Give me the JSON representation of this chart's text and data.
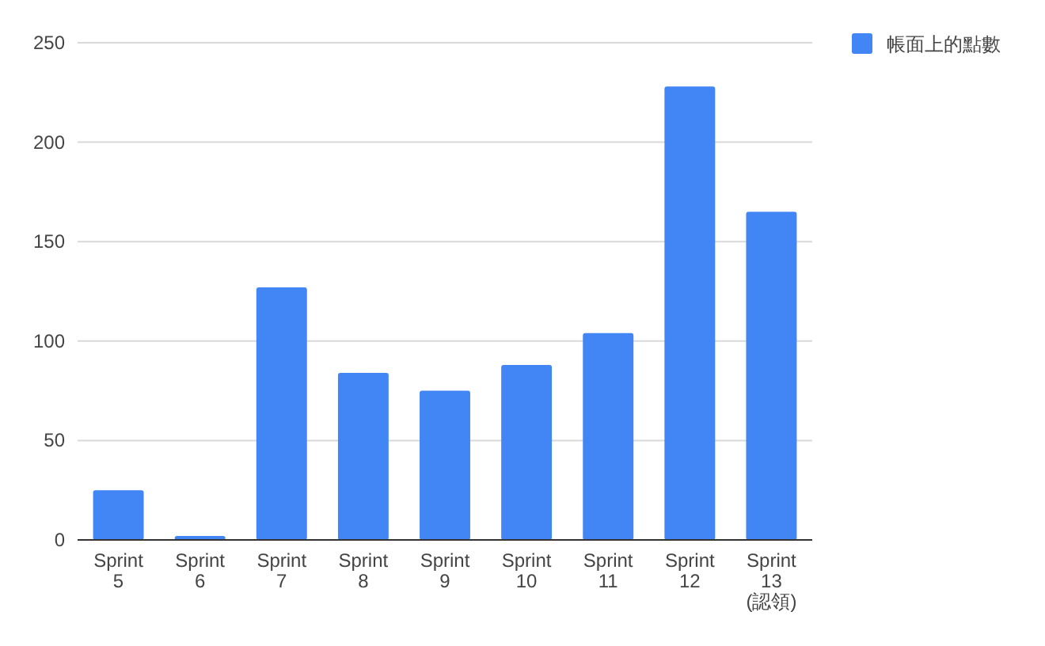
{
  "chart_data": {
    "type": "bar",
    "categories": [
      "Sprint 5",
      "Sprint 6",
      "Sprint 7",
      "Sprint 8",
      "Sprint 9",
      "Sprint 10",
      "Sprint 11",
      "Sprint 12",
      "Sprint 13 (認領)"
    ],
    "series": [
      {
        "name": "帳面上的點數",
        "color": "#4285f4",
        "values": [
          25,
          2,
          127,
          84,
          75,
          88,
          104,
          228,
          165
        ]
      }
    ],
    "ylim": [
      0,
      250
    ],
    "yticks": [
      0,
      50,
      100,
      150,
      200,
      250
    ],
    "grid": "y",
    "legend": "top right"
  }
}
